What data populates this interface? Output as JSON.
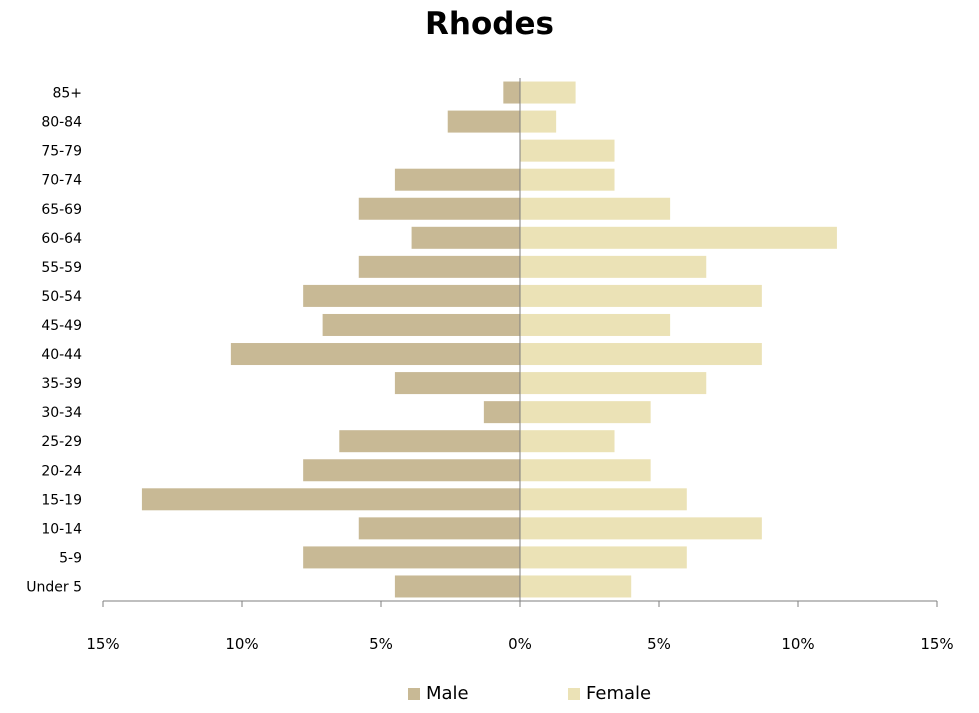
{
  "chart_data": {
    "type": "bar",
    "title": "Rhodes",
    "orientation": "horizontal-population-pyramid",
    "categories": [
      "85+",
      "80-84",
      "75-79",
      "70-74",
      "65-69",
      "60-64",
      "55-59",
      "50-54",
      "45-49",
      "40-44",
      "35-39",
      "30-34",
      "25-29",
      "20-24",
      "15-19",
      "10-14",
      "5-9",
      "Under 5"
    ],
    "series": [
      {
        "name": "Male",
        "color": "#c8b995",
        "values": [
          0.6,
          2.6,
          0,
          4.5,
          5.8,
          3.9,
          5.8,
          7.8,
          7.1,
          10.4,
          4.5,
          1.3,
          6.5,
          7.8,
          13.6,
          5.8,
          7.8,
          4.5
        ]
      },
      {
        "name": "Female",
        "color": "#ebe2b6",
        "values": [
          2.0,
          1.3,
          3.4,
          3.4,
          5.4,
          11.4,
          6.7,
          8.7,
          5.4,
          8.7,
          6.7,
          4.7,
          3.4,
          4.7,
          6.0,
          8.7,
          6.0,
          4.0
        ]
      }
    ],
    "xlim": [
      -15,
      15
    ],
    "x_ticks": [
      -15,
      -10,
      -5,
      0,
      5,
      10,
      15
    ],
    "x_tick_labels": [
      "15%",
      "10%",
      "5%",
      "0%",
      "5%",
      "10%",
      "15%"
    ],
    "grid": false,
    "legend_position": "bottom"
  }
}
